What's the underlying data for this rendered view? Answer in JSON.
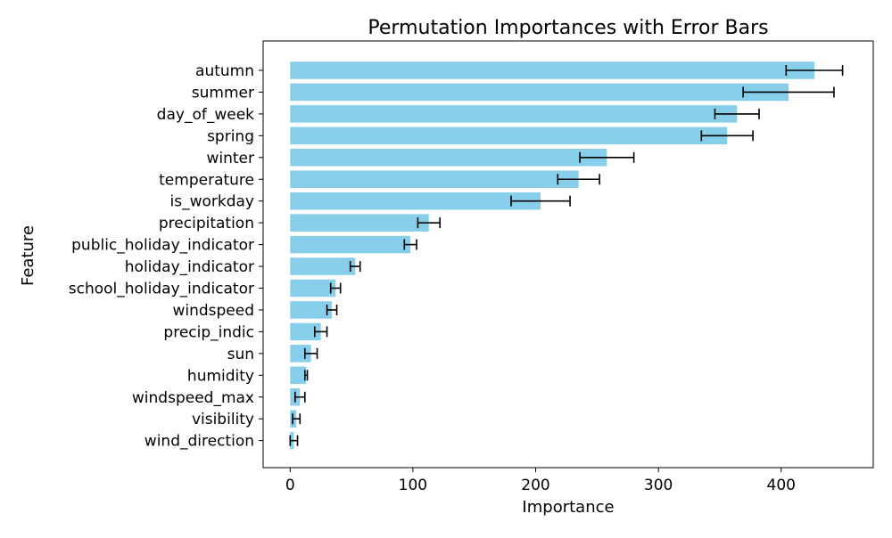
{
  "chart_data": {
    "type": "bar",
    "orientation": "horizontal",
    "title": "Permutation Importances with Error Bars",
    "xlabel": "Importance",
    "ylabel": "Feature",
    "xlim": [
      -22,
      475
    ],
    "xticks": [
      0,
      100,
      200,
      300,
      400
    ],
    "grid": false,
    "bar_color": "#87CEEB",
    "error_color": "#000000",
    "categories": [
      "autumn",
      "summer",
      "day_of_week",
      "spring",
      "winter",
      "temperature",
      "is_workday",
      "precipitation",
      "public_holiday_indicator",
      "holiday_indicator",
      "school_holiday_indicator",
      "windspeed",
      "precip_indic",
      "sun",
      "humidity",
      "windspeed_max",
      "visibility",
      "wind_direction"
    ],
    "values": [
      427,
      406,
      364,
      356,
      258,
      235,
      204,
      113,
      98,
      53,
      37,
      34,
      25,
      17,
      13,
      8,
      5,
      3
    ],
    "errors": [
      23,
      37,
      18,
      21,
      22,
      17,
      24,
      9,
      5,
      4,
      4,
      4,
      5,
      5,
      1,
      4,
      3,
      3
    ]
  }
}
